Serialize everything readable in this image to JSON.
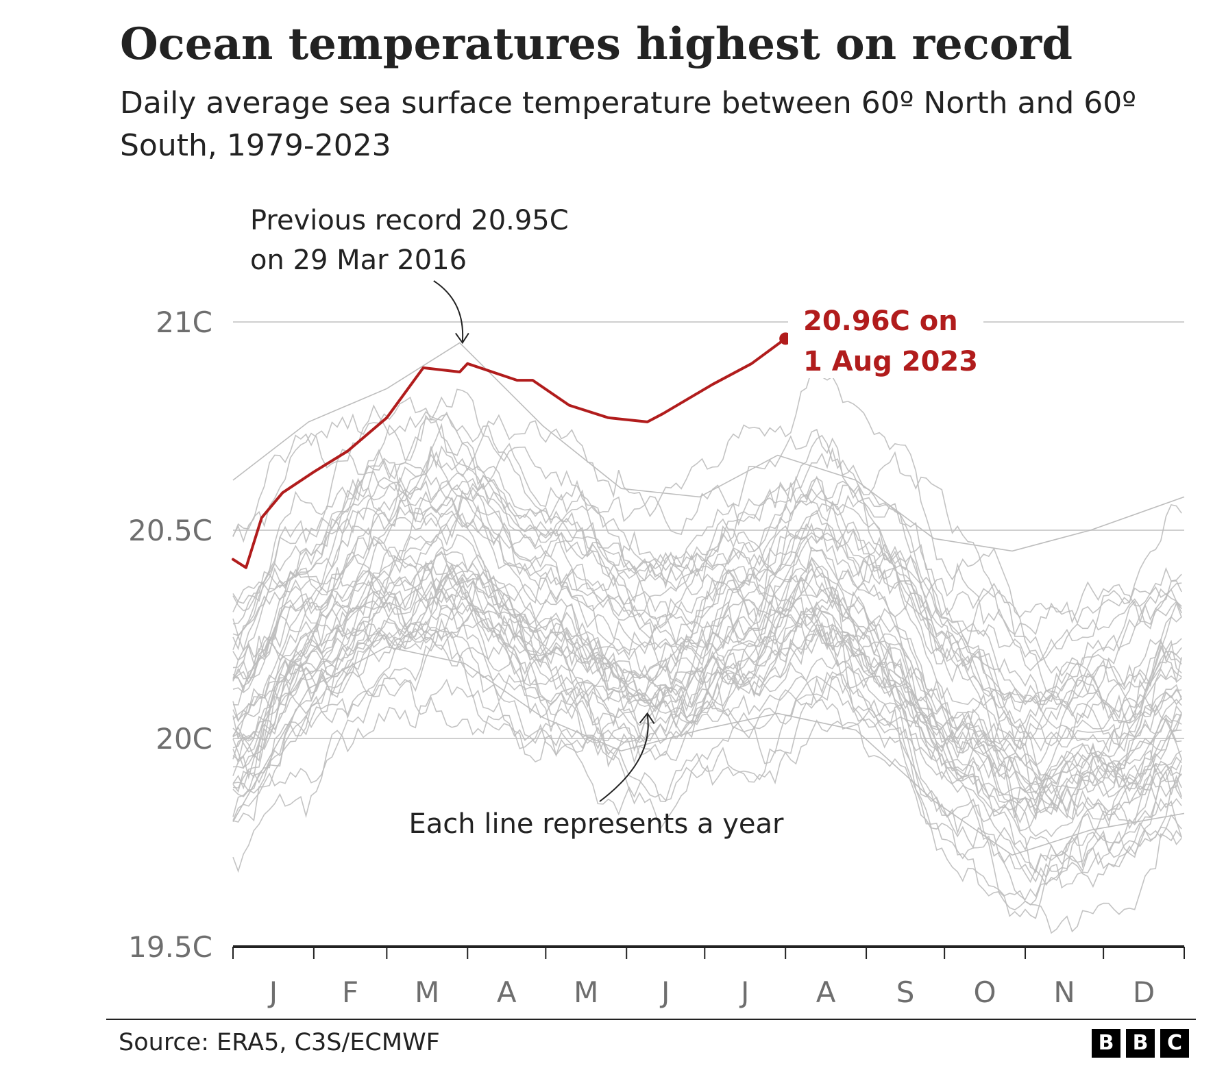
{
  "chart_data": {
    "type": "line",
    "title": "Ocean temperatures highest on record",
    "subtitle": "Daily average sea surface temperature between 60º North and 60º South, 1979-2023",
    "xlabel": "",
    "ylabel": "",
    "ylim": [
      19.5,
      21.15
    ],
    "yticks": [
      {
        "value": 21,
        "label": "21C"
      },
      {
        "value": 20.5,
        "label": "20.5C"
      },
      {
        "value": 20,
        "label": "20C"
      },
      {
        "value": 19.5,
        "label": "19.5C"
      }
    ],
    "x_unit": "day of year",
    "xlim": [
      1,
      366
    ],
    "months": [
      "J",
      "F",
      "M",
      "A",
      "M",
      "J",
      "J",
      "A",
      "S",
      "O",
      "N",
      "D"
    ],
    "grid": true,
    "highlight_series": {
      "year": 2023,
      "color": "#b11c1c",
      "x": [
        1,
        6,
        12,
        20,
        32,
        45,
        60,
        74,
        88,
        91,
        110,
        116,
        130,
        145,
        160,
        166,
        185,
        200,
        213
      ],
      "values": [
        20.43,
        20.41,
        20.53,
        20.59,
        20.64,
        20.69,
        20.77,
        20.89,
        20.88,
        20.9,
        20.86,
        20.86,
        20.8,
        20.77,
        20.76,
        20.78,
        20.85,
        20.9,
        20.96
      ]
    },
    "background_series": {
      "color": "#bdbdbd",
      "count": 44,
      "years": "1979-2022",
      "year_range": [
        1979,
        2022
      ],
      "selected_years": [
        {
          "year": 2016,
          "x": [
            1,
            30,
            60,
            88,
            120,
            150,
            180,
            210,
            240,
            270,
            300,
            330,
            366
          ],
          "values": [
            20.62,
            20.76,
            20.84,
            20.95,
            20.75,
            20.6,
            20.58,
            20.68,
            20.62,
            20.48,
            20.45,
            20.5,
            20.58
          ]
        },
        {
          "year": 1979,
          "x": [
            1,
            30,
            60,
            90,
            120,
            150,
            180,
            210,
            240,
            270,
            300,
            330,
            366
          ],
          "values": [
            19.8,
            20.12,
            20.22,
            20.18,
            20.05,
            19.97,
            20.02,
            20.06,
            20.02,
            19.85,
            19.72,
            19.78,
            19.82
          ]
        }
      ]
    },
    "annotations": {
      "previous_record": {
        "text_line1": "Previous record 20.95C",
        "text_line2": "on 29 Mar 2016",
        "x": 88,
        "value": 20.95
      },
      "new_record": {
        "text_line1": "20.96C on",
        "text_line2": "1 Aug 2023",
        "x": 213,
        "value": 20.96
      },
      "each_line": {
        "text": "Each line represents a year",
        "x": 160,
        "value": 20.07
      }
    }
  },
  "source": "Source: ERA5, C3S/ECMWF",
  "logo": [
    "B",
    "B",
    "C"
  ]
}
